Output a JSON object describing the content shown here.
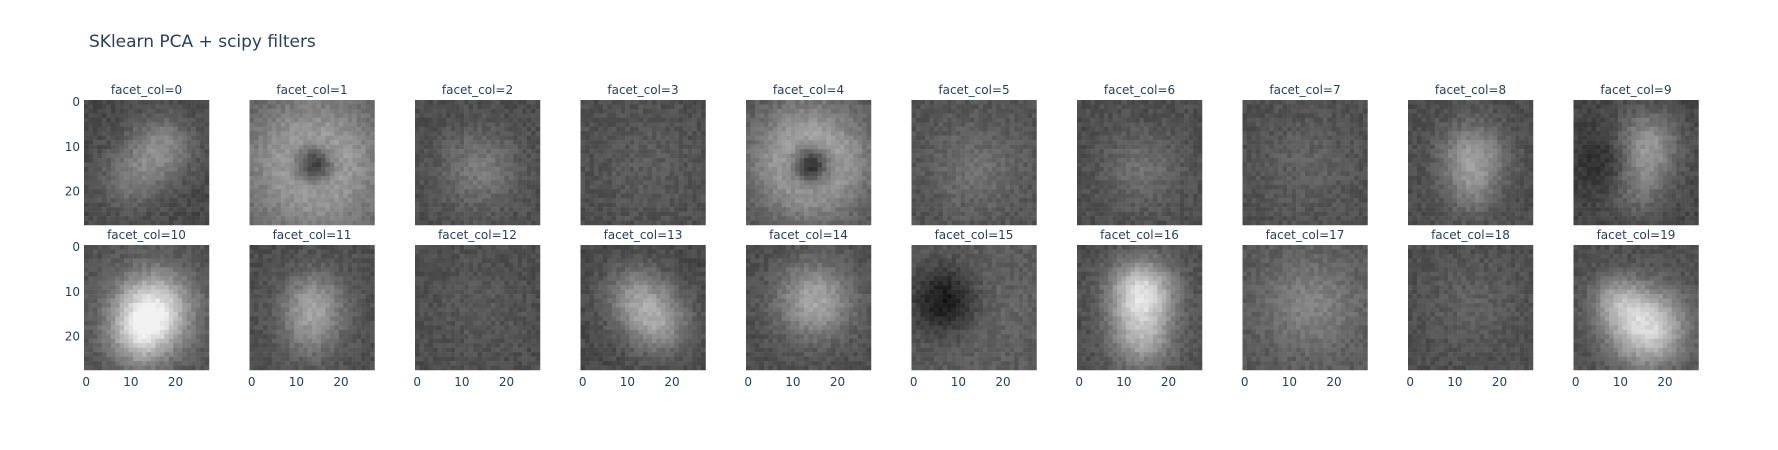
{
  "chart_data": {
    "type": "heatmap",
    "title": "SKlearn PCA + scipy filters",
    "colorscale": "gray",
    "grid": false,
    "facet_rows": 2,
    "facet_cols": 10,
    "image_size": [
      28,
      28
    ],
    "xlim": [
      0,
      27
    ],
    "ylim": [
      27,
      0
    ],
    "x_ticks": [
      "0",
      "10",
      "20"
    ],
    "y_ticks": [
      "0",
      "10",
      "20"
    ],
    "facets": [
      {
        "label": "facet_col=0"
      },
      {
        "label": "facet_col=1"
      },
      {
        "label": "facet_col=2"
      },
      {
        "label": "facet_col=3"
      },
      {
        "label": "facet_col=4"
      },
      {
        "label": "facet_col=5"
      },
      {
        "label": "facet_col=6"
      },
      {
        "label": "facet_col=7"
      },
      {
        "label": "facet_col=8"
      },
      {
        "label": "facet_col=9"
      },
      {
        "label": "facet_col=10"
      },
      {
        "label": "facet_col=11"
      },
      {
        "label": "facet_col=12"
      },
      {
        "label": "facet_col=13"
      },
      {
        "label": "facet_col=14"
      },
      {
        "label": "facet_col=15"
      },
      {
        "label": "facet_col=16"
      },
      {
        "label": "facet_col=17"
      },
      {
        "label": "facet_col=18"
      },
      {
        "label": "facet_col=19"
      }
    ]
  }
}
